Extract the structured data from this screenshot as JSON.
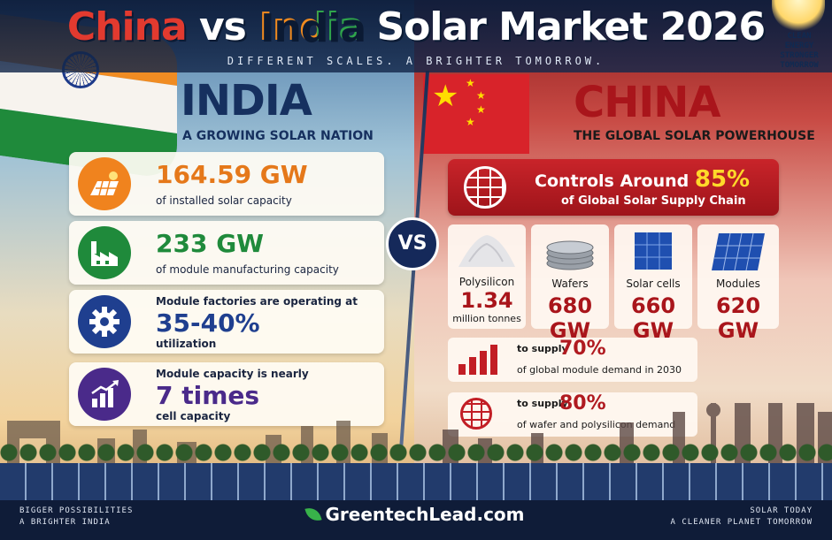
{
  "title": {
    "part1": "China",
    "part2": " vs ",
    "part3": "India",
    "part4": " Solar Market 2026"
  },
  "subtitle": "DIFFERENT SCALES. A BRIGHTER TOMORROW.",
  "badge": [
    "CLEAN",
    "ENERGY",
    "STRONGER",
    "TOMORROW"
  ],
  "india": {
    "heading": "INDIA",
    "subheading": "A GROWING SOLAR NATION",
    "cards": [
      {
        "icon": "solar-panel-icon",
        "value": "164.59 GW",
        "text": "of installed solar capacity",
        "color": "#f0831e"
      },
      {
        "icon": "factory-icon",
        "value": "233 GW",
        "text": "of module manufacturing capacity",
        "color": "#1f8a3b"
      },
      {
        "icon": "gear-icon",
        "pre": "Module factories are operating at",
        "value": "35-40%",
        "text": "utilization",
        "color": "#1f3f8f"
      },
      {
        "icon": "growth-chart-icon",
        "pre": "Module capacity is nearly",
        "value": "7 times",
        "text": "cell capacity",
        "color": "#4a2a8a"
      }
    ]
  },
  "vs": "VS",
  "china": {
    "heading": "CHINA",
    "subheading": "THE GLOBAL SOLAR POWERHOUSE",
    "banner": {
      "pre": "Controls Around ",
      "percent": "85%",
      "post": "of Global Solar Supply Chain"
    },
    "tiles": [
      {
        "icon": "polysilicon-pile-icon",
        "label": "Polysilicon",
        "value": "1.34",
        "unit": "million tonnes"
      },
      {
        "icon": "wafers-icon",
        "label": "Wafers",
        "value": "680 GW"
      },
      {
        "icon": "solar-cell-icon",
        "label": "Solar cells",
        "value": "660 GW"
      },
      {
        "icon": "module-icon",
        "label": "Modules",
        "value": "620 GW"
      }
    ],
    "supply": [
      {
        "icon": "bar-chart-icon",
        "pre": "to supply",
        "percent": "70%",
        "text": "of global module demand in 2030"
      },
      {
        "icon": "globe-icon",
        "pre": "to supply",
        "percent": "80%",
        "text": "of wafer and polysilicon demand"
      }
    ]
  },
  "footer": {
    "left": [
      "BIGGER POSSIBILITIES",
      "A BRIGHTER INDIA"
    ],
    "brand": "GreentechLead.com",
    "right": [
      "SOLAR TODAY",
      "A CLEANER PLANET TOMORROW"
    ]
  },
  "colors": {
    "india_orange": "#f0831e",
    "india_green": "#1f8a3b",
    "china_red": "#a9151b",
    "navy": "#16305f"
  }
}
